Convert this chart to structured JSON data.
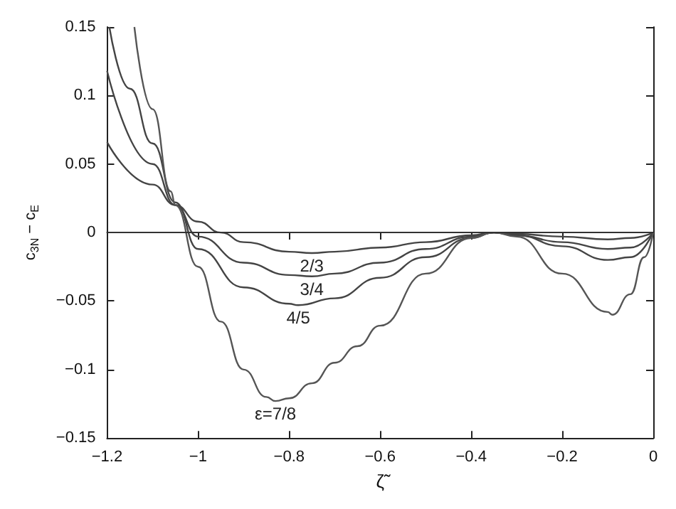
{
  "chart_data": {
    "type": "line",
    "xlabel": "ζ̃",
    "ylabel": "c$_{3N}$ − c$_{E}$",
    "xlim": [
      -1.2,
      0
    ],
    "ylim": [
      -0.15,
      0.15
    ],
    "xticks": [
      -1.2,
      -1,
      -0.8,
      -0.6,
      -0.4,
      -0.2,
      0
    ],
    "yticks": [
      -0.15,
      -0.1,
      -0.05,
      0,
      0.05,
      0.1,
      0.15
    ],
    "grid": false,
    "line_style": "solid",
    "ref_lines": [
      {
        "axis": "y",
        "value": 0,
        "color": "#333333"
      }
    ],
    "series": [
      {
        "name": "2/3",
        "color": "#444444",
        "x": [
          -1.2,
          -1.1,
          -1.05,
          -1.0,
          -0.95,
          -0.9,
          -0.8,
          -0.75,
          -0.7,
          -0.6,
          -0.5,
          -0.4,
          -0.35,
          -0.3,
          -0.2,
          -0.1,
          -0.05,
          0
        ],
        "values": [
          0.066,
          0.035,
          0.02,
          0.008,
          0,
          -0.007,
          -0.014,
          -0.015,
          -0.014,
          -0.011,
          -0.007,
          -0.002,
          0,
          -0.001,
          -0.003,
          -0.005,
          -0.004,
          0
        ]
      },
      {
        "name": "3/4",
        "color": "#444444",
        "x": [
          -1.2,
          -1.1,
          -1.05,
          -1.0,
          -0.9,
          -0.8,
          -0.75,
          -0.7,
          -0.6,
          -0.5,
          -0.4,
          -0.35,
          -0.3,
          -0.2,
          -0.1,
          -0.05,
          0
        ],
        "values": [
          0.118,
          0.05,
          0.02,
          -0.003,
          -0.022,
          -0.031,
          -0.032,
          -0.03,
          -0.022,
          -0.012,
          -0.003,
          0,
          -0.002,
          -0.007,
          -0.012,
          -0.011,
          0
        ]
      },
      {
        "name": "4/5",
        "color": "#444444",
        "x": [
          -1.195,
          -1.15,
          -1.1,
          -1.05,
          -1.0,
          -0.9,
          -0.8,
          -0.78,
          -0.7,
          -0.6,
          -0.5,
          -0.4,
          -0.35,
          -0.3,
          -0.2,
          -0.1,
          -0.05,
          0
        ],
        "values": [
          0.15,
          0.105,
          0.065,
          0.022,
          -0.012,
          -0.04,
          -0.052,
          -0.053,
          -0.048,
          -0.033,
          -0.018,
          -0.004,
          0,
          -0.002,
          -0.01,
          -0.02,
          -0.018,
          0
        ]
      },
      {
        "name": "ε=7/8",
        "color": "#555555",
        "x": [
          -1.14,
          -1.1,
          -1.06,
          -1.05,
          -1.0,
          -0.95,
          -0.9,
          -0.85,
          -0.83,
          -0.8,
          -0.75,
          -0.7,
          -0.65,
          -0.6,
          -0.5,
          -0.4,
          -0.35,
          -0.3,
          -0.2,
          -0.1,
          -0.09,
          -0.05,
          -0.02,
          0
        ],
        "values": [
          0.15,
          0.09,
          0.03,
          0.02,
          -0.025,
          -0.065,
          -0.1,
          -0.12,
          -0.123,
          -0.121,
          -0.11,
          -0.095,
          -0.083,
          -0.068,
          -0.03,
          -0.004,
          0,
          -0.003,
          -0.03,
          -0.058,
          -0.06,
          -0.045,
          -0.018,
          0
        ]
      }
    ]
  }
}
